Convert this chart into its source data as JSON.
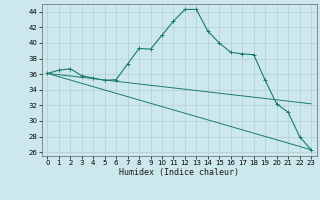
{
  "xlabel": "Humidex (Indice chaleur)",
  "background_color": "#cce8ec",
  "grid_color": "#b0cfd4",
  "line_color": "#1a7a6e",
  "xlim": [
    -0.5,
    23.5
  ],
  "ylim": [
    25.5,
    45.0
  ],
  "xticks": [
    0,
    1,
    2,
    3,
    4,
    5,
    6,
    7,
    8,
    9,
    10,
    11,
    12,
    13,
    14,
    15,
    16,
    17,
    18,
    19,
    20,
    21,
    22,
    23
  ],
  "yticks": [
    26,
    28,
    30,
    32,
    34,
    36,
    38,
    40,
    42,
    44
  ],
  "series1_x": [
    0,
    1,
    2,
    3,
    4,
    5,
    6,
    7,
    8,
    9,
    10,
    11,
    12,
    13,
    14,
    15,
    16,
    17,
    18,
    19,
    20,
    21,
    22,
    23
  ],
  "series1_y": [
    36.1,
    36.5,
    36.7,
    35.8,
    35.5,
    35.2,
    35.3,
    37.3,
    39.3,
    39.2,
    41.0,
    42.8,
    44.3,
    44.3,
    41.5,
    40.0,
    38.8,
    38.6,
    38.5,
    35.2,
    32.2,
    31.1,
    28.0,
    26.3
  ],
  "series2_x": [
    0,
    23
  ],
  "series2_y": [
    36.1,
    32.2
  ],
  "series3_x": [
    0,
    23
  ],
  "series3_y": [
    36.1,
    26.3
  ]
}
